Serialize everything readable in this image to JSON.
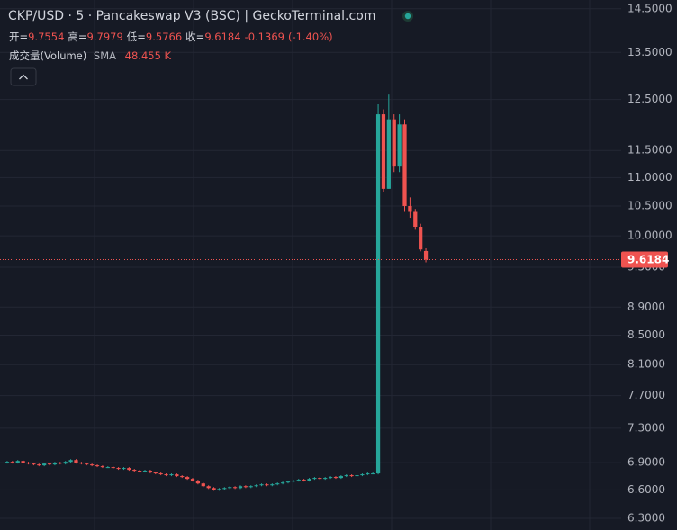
{
  "chart_data": {
    "type": "candlestick",
    "title": "CKP/USD · 5 · Pancakeswap V3 (BSC) | GeckoTerminal.com",
    "ohlc_legend": [
      {
        "label": "开=",
        "value": 9.7554
      },
      {
        "label": "高=",
        "value": 9.7979
      },
      {
        "label": "低=",
        "value": 9.5766
      },
      {
        "label": "收=",
        "value": 9.6184
      }
    ],
    "change": -0.1369,
    "change_label": "(-1.40%)",
    "volume_label": "成交量(Volume)",
    "volume_sma_label": "SMA",
    "volume_sma": "48.455 K",
    "up_color": "#26a69a",
    "down_color": "#ef5350",
    "log_scale": true,
    "grid": true,
    "ylim": [
      6.18,
      14.71
    ],
    "yticks": [
      {
        "value": 6.3,
        "label": "6.3000"
      },
      {
        "value": 6.6,
        "label": "6.6000"
      },
      {
        "value": 6.9,
        "label": "6.9000"
      },
      {
        "value": 7.3,
        "label": "7.3000"
      },
      {
        "value": 7.7,
        "label": "7.7000"
      },
      {
        "value": 8.1,
        "label": "8.1000"
      },
      {
        "value": 8.5,
        "label": "8.5000"
      },
      {
        "value": 8.9,
        "label": "8.9000"
      },
      {
        "value": 9.5,
        "label": "9.5000"
      },
      {
        "value": 10,
        "label": "10.0000"
      },
      {
        "value": 10.5,
        "label": "10.5000"
      },
      {
        "value": 11,
        "label": "11.0000"
      },
      {
        "value": 11.5,
        "label": "11.5000"
      },
      {
        "value": 12.5,
        "label": "12.5000"
      },
      {
        "value": 13.5,
        "label": "13.5000"
      },
      {
        "value": 14.5,
        "label": "14.5000"
      }
    ],
    "open": [
      6.9,
      6.91,
      6.9,
      6.92,
      6.9,
      6.89,
      6.88,
      6.87,
      6.89,
      6.88,
      6.9,
      6.89,
      6.91,
      6.93,
      6.9,
      6.89,
      6.88,
      6.87,
      6.86,
      6.85,
      6.85,
      6.84,
      6.83,
      6.84,
      6.82,
      6.81,
      6.8,
      6.81,
      6.79,
      6.78,
      6.77,
      6.76,
      6.77,
      6.75,
      6.74,
      6.72,
      6.7,
      6.67,
      6.64,
      6.62,
      6.6,
      6.61,
      6.62,
      6.63,
      6.62,
      6.64,
      6.63,
      6.64,
      6.65,
      6.66,
      6.65,
      6.66,
      6.67,
      6.68,
      6.69,
      6.7,
      6.71,
      6.7,
      6.72,
      6.73,
      6.72,
      6.73,
      6.74,
      6.73,
      6.75,
      6.76,
      6.75,
      6.76,
      6.77,
      6.78,
      6.78,
      12.2,
      10.8,
      12.1,
      11.2,
      12.0,
      10.5,
      10.4,
      10.15,
      9.7554
    ],
    "high": [
      6.92,
      6.92,
      6.93,
      6.93,
      6.91,
      6.9,
      6.89,
      6.9,
      6.9,
      6.91,
      6.91,
      6.92,
      6.94,
      6.94,
      6.91,
      6.9,
      6.89,
      6.88,
      6.87,
      6.86,
      6.86,
      6.85,
      6.85,
      6.85,
      6.83,
      6.82,
      6.82,
      6.82,
      6.8,
      6.79,
      6.78,
      6.78,
      6.78,
      6.76,
      6.75,
      6.73,
      6.71,
      6.68,
      6.65,
      6.63,
      6.62,
      6.63,
      6.64,
      6.64,
      6.65,
      6.65,
      6.65,
      6.66,
      6.67,
      6.67,
      6.67,
      6.68,
      6.69,
      6.7,
      6.71,
      6.72,
      6.72,
      6.73,
      6.74,
      6.74,
      6.74,
      6.75,
      6.75,
      6.76,
      6.77,
      6.77,
      6.77,
      6.78,
      6.79,
      6.79,
      12.4,
      12.3,
      12.6,
      12.2,
      12.2,
      12.1,
      10.65,
      10.45,
      10.2,
      9.7979
    ],
    "low": [
      6.89,
      6.89,
      6.89,
      6.89,
      6.88,
      6.87,
      6.86,
      6.86,
      6.87,
      6.87,
      6.88,
      6.88,
      6.9,
      6.89,
      6.88,
      6.87,
      6.86,
      6.85,
      6.84,
      6.84,
      6.83,
      6.82,
      6.82,
      6.81,
      6.8,
      6.79,
      6.79,
      6.78,
      6.77,
      6.76,
      6.75,
      6.75,
      6.74,
      6.73,
      6.71,
      6.69,
      6.66,
      6.63,
      6.61,
      6.59,
      6.59,
      6.6,
      6.61,
      6.61,
      6.61,
      6.62,
      6.62,
      6.63,
      6.64,
      6.64,
      6.64,
      6.65,
      6.66,
      6.67,
      6.68,
      6.69,
      6.69,
      6.69,
      6.71,
      6.71,
      6.71,
      6.72,
      6.72,
      6.72,
      6.74,
      6.74,
      6.74,
      6.75,
      6.76,
      6.77,
      6.77,
      10.75,
      10.8,
      11.1,
      11.1,
      10.4,
      10.3,
      10.1,
      9.75,
      9.5766
    ],
    "close": [
      6.91,
      6.9,
      6.92,
      6.9,
      6.89,
      6.88,
      6.87,
      6.89,
      6.88,
      6.9,
      6.89,
      6.91,
      6.93,
      6.9,
      6.89,
      6.88,
      6.87,
      6.86,
      6.85,
      6.85,
      6.84,
      6.83,
      6.84,
      6.82,
      6.81,
      6.8,
      6.81,
      6.79,
      6.78,
      6.77,
      6.76,
      6.77,
      6.75,
      6.74,
      6.72,
      6.7,
      6.67,
      6.64,
      6.62,
      6.6,
      6.61,
      6.62,
      6.63,
      6.62,
      6.64,
      6.63,
      6.64,
      6.65,
      6.66,
      6.65,
      6.66,
      6.67,
      6.68,
      6.69,
      6.7,
      6.71,
      6.7,
      6.72,
      6.73,
      6.72,
      6.73,
      6.74,
      6.73,
      6.75,
      6.76,
      6.75,
      6.76,
      6.77,
      6.78,
      6.78,
      12.2,
      10.8,
      12.1,
      11.2,
      12.0,
      10.5,
      10.4,
      10.15,
      9.78,
      9.6184
    ]
  }
}
